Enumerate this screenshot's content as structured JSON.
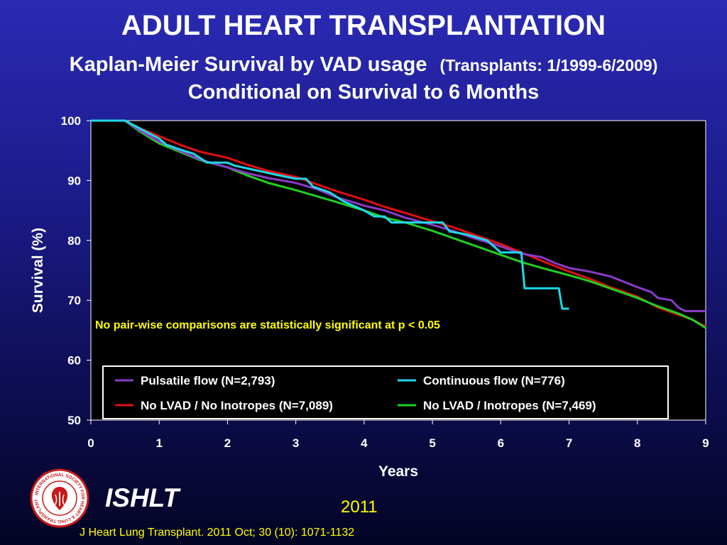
{
  "header": {
    "title": "ADULT HEART TRANSPLANTATION",
    "subtitle_main": "Kaplan-Meier Survival by VAD usage",
    "subtitle_note": "(Transplants: 1/1999-6/2009)",
    "subtitle_line2": "Conditional on Survival to 6 Months"
  },
  "footer": {
    "brand": "ISHLT",
    "year": "2011",
    "citation": "J Heart Lung Transplant. 2011 Oct; 30 (10): 1071-1132",
    "logo_ring_text": "INTERNATIONAL SOCIETY FOR HEART & LUNG TRANSPLANTATION"
  },
  "chart_data": {
    "type": "line",
    "xlabel": "Years",
    "ylabel": "Survival (%)",
    "xlim": [
      0,
      9
    ],
    "ylim": [
      50,
      100
    ],
    "xticks": [
      0,
      1,
      2,
      3,
      4,
      5,
      6,
      7,
      8,
      9
    ],
    "yticks": [
      50,
      60,
      70,
      80,
      90,
      100
    ],
    "grid": false,
    "background": "#000000",
    "legend_position": "bottom",
    "annotation": "No pair-wise comparisons are statistically significant at p < 0.05",
    "series": [
      {
        "name": "Pulsatile flow (N=2,793)",
        "color": "#8a3cc8",
        "x": [
          0,
          0.5,
          0.7,
          1.0,
          1.3,
          1.6,
          2.0,
          2.3,
          2.6,
          3.0,
          3.3,
          3.6,
          4.0,
          4.3,
          4.6,
          5.0,
          5.3,
          5.6,
          6.0,
          6.3,
          6.6,
          6.8,
          7.0,
          7.3,
          7.6,
          8.0,
          8.2,
          8.3,
          8.5,
          8.6,
          8.7,
          9.0
        ],
        "y": [
          100,
          100,
          98.5,
          96.5,
          95,
          93.5,
          92.2,
          91.2,
          90.4,
          89.6,
          88.6,
          87.2,
          85.8,
          85,
          83.8,
          82.6,
          81.6,
          80.4,
          79,
          77.8,
          77.2,
          76.2,
          75.4,
          74.8,
          74,
          72.2,
          71.4,
          70.4,
          70,
          68.8,
          68.2,
          68.2
        ]
      },
      {
        "name": "Continuous flow (N=776)",
        "color": "#20d8e8",
        "x": [
          0,
          0.5,
          0.75,
          1.0,
          1.1,
          1.3,
          1.5,
          1.7,
          2.0,
          2.1,
          2.3,
          2.5,
          2.7,
          3.0,
          3.15,
          3.25,
          3.5,
          3.7,
          4.0,
          4.15,
          4.3,
          4.4,
          4.6,
          5.0,
          5.15,
          5.25,
          5.5,
          5.8,
          6.0,
          6.3,
          6.35,
          6.6,
          6.85,
          6.9,
          7.0
        ],
        "y": [
          100,
          100,
          98.5,
          97,
          96,
          95.2,
          94.5,
          93,
          93,
          92.5,
          92,
          91.5,
          91,
          90.3,
          90.3,
          89,
          88,
          86.5,
          85,
          84,
          84,
          83,
          83,
          83,
          83,
          81.5,
          81,
          80,
          78,
          78,
          72,
          72,
          72,
          68.6,
          68.6
        ]
      },
      {
        "name": "No LVAD / No Inotropes  (N=7,089)",
        "color": "#e01010",
        "x": [
          0,
          0.5,
          0.7,
          1.0,
          1.3,
          1.6,
          2.0,
          2.3,
          2.6,
          3.0,
          3.3,
          3.6,
          4.0,
          4.3,
          4.6,
          5.0,
          5.3,
          5.6,
          6.0,
          6.3,
          6.6,
          7.0,
          7.3,
          7.6,
          8.0,
          8.3,
          8.6,
          8.8,
          9.0
        ],
        "y": [
          100,
          100,
          98.8,
          97.4,
          96,
          94.8,
          93.8,
          92.6,
          91.6,
          90.6,
          89.4,
          88.2,
          86.8,
          85.6,
          84.6,
          83.2,
          82.2,
          81,
          79.4,
          78,
          76.6,
          74.8,
          73.6,
          72.2,
          70.6,
          68.8,
          67.6,
          66.8,
          65.6
        ]
      },
      {
        "name": "No LVAD / Inotropes (N=7,469)",
        "color": "#20d020",
        "x": [
          0,
          0.5,
          0.7,
          1.0,
          1.3,
          1.6,
          2.0,
          2.3,
          2.6,
          3.0,
          3.3,
          3.6,
          4.0,
          4.3,
          4.6,
          5.0,
          5.3,
          5.6,
          6.0,
          6.3,
          6.6,
          7.0,
          7.3,
          7.6,
          8.0,
          8.3,
          8.6,
          8.8,
          9.0
        ],
        "y": [
          100,
          100,
          98.3,
          96.2,
          94.8,
          93.4,
          92.2,
          90.8,
          89.6,
          88.4,
          87.4,
          86.4,
          85,
          83.8,
          83,
          81.6,
          80.4,
          79.2,
          77.6,
          76.4,
          75.4,
          74.2,
          73.2,
          72,
          70.4,
          69,
          67.8,
          66.8,
          65.4
        ]
      }
    ]
  }
}
